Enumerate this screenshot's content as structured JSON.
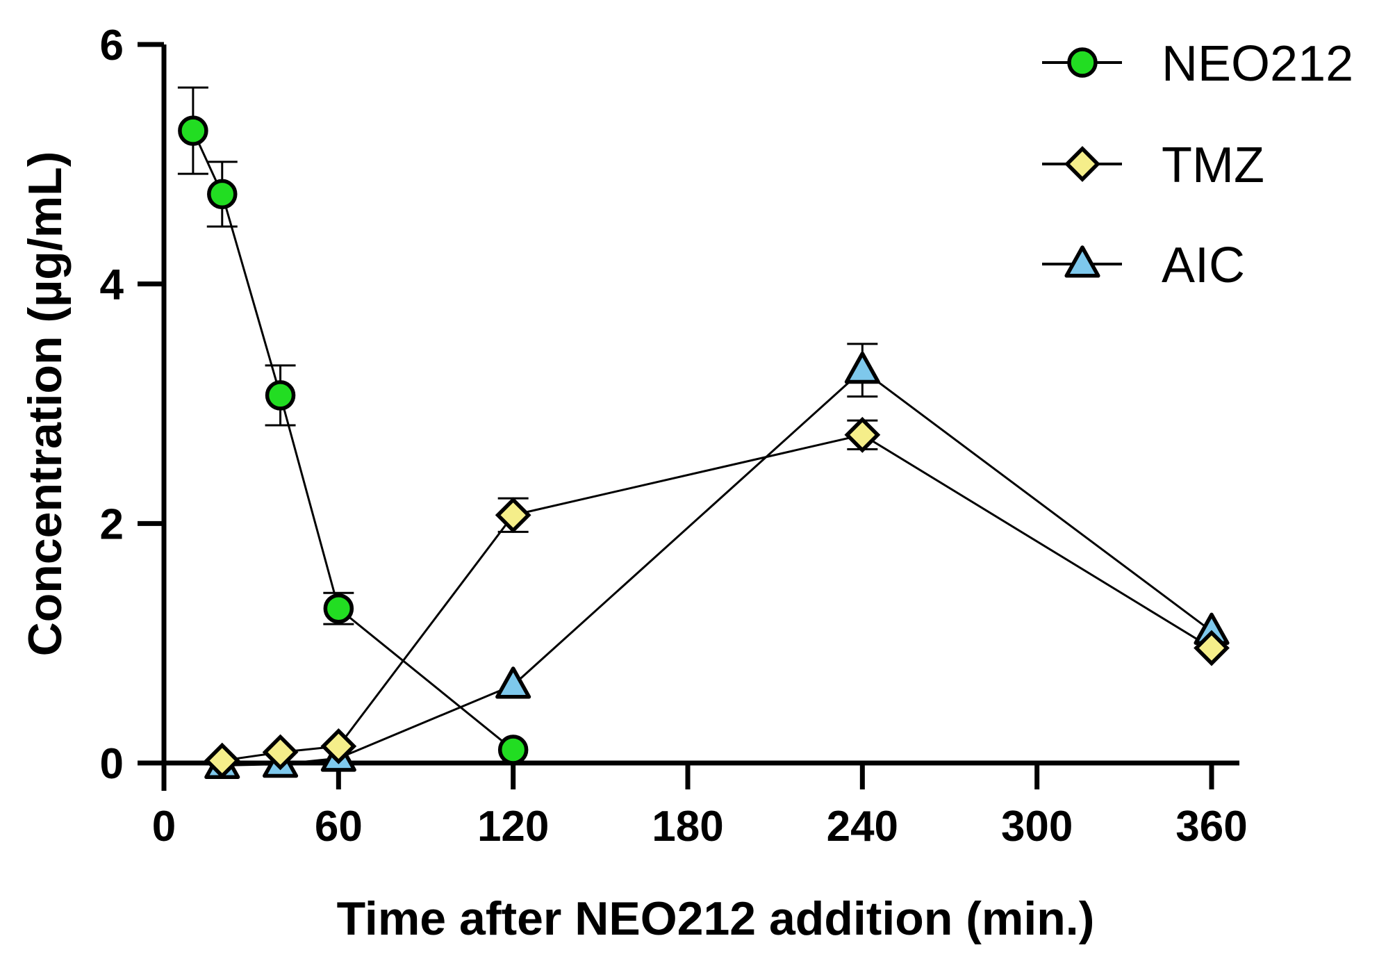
{
  "chart_data": {
    "type": "line",
    "title": "",
    "xlabel": "Time after NEO212 addition (min.)",
    "ylabel": "Concentration (µg/mL)",
    "xlim": [
      0,
      360
    ],
    "ylim": [
      0,
      6
    ],
    "xticks": [
      0,
      60,
      120,
      180,
      240,
      300,
      360
    ],
    "yticks": [
      0,
      2,
      4,
      6
    ],
    "xtick_labels": [
      "0",
      "60",
      "120",
      "180",
      "240",
      "300",
      "360"
    ],
    "ytick_labels": [
      "0",
      "2",
      "4",
      "6"
    ],
    "grid": false,
    "legend_position": "top-right",
    "series": [
      {
        "name": "NEO212",
        "marker": "circle",
        "color": "#22dd22",
        "x": [
          10,
          20,
          40,
          60,
          120
        ],
        "y": [
          5.28,
          4.75,
          3.07,
          1.29,
          0.11
        ],
        "err": [
          0.36,
          0.27,
          0.25,
          0.13,
          0.02
        ]
      },
      {
        "name": "TMZ",
        "marker": "diamond",
        "color": "#f5ee8a",
        "x": [
          20,
          40,
          60,
          120,
          240,
          360
        ],
        "y": [
          0.02,
          0.09,
          0.14,
          2.07,
          2.74,
          0.96
        ],
        "err": [
          0.02,
          0.02,
          0.03,
          0.14,
          0.12,
          0.05
        ]
      },
      {
        "name": "AIC",
        "marker": "triangle",
        "color": "#7ec8ec",
        "x": [
          20,
          40,
          60,
          120,
          240,
          360
        ],
        "y": [
          -0.02,
          -0.01,
          0.04,
          0.65,
          3.28,
          1.1
        ],
        "err": [
          0.01,
          0.01,
          0.01,
          0.03,
          0.22,
          0.04
        ]
      }
    ]
  }
}
